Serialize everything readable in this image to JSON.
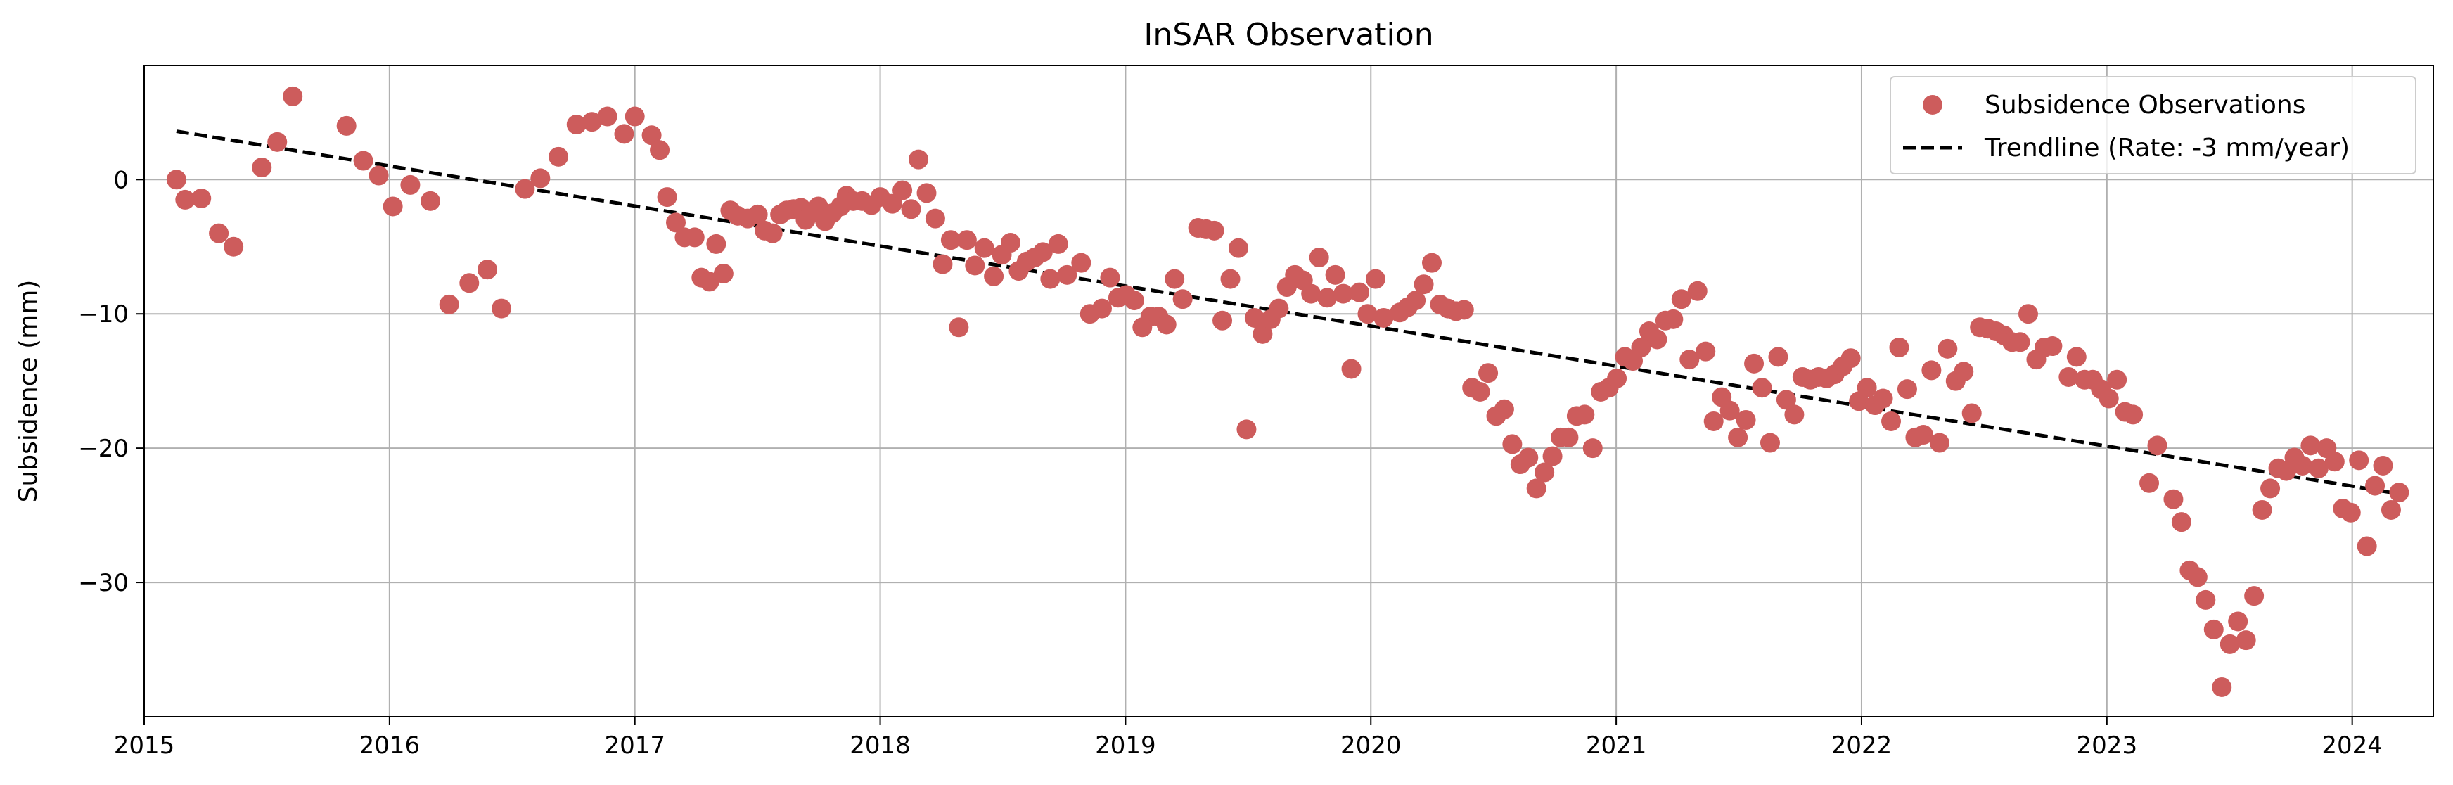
{
  "chart_data": {
    "type": "scatter",
    "title": "InSAR Observation",
    "xlabel": "",
    "ylabel": "Subsidence (mm)",
    "xlim": [
      "2015-01-01",
      "2024-05-01"
    ],
    "ylim": [
      -40,
      8.5
    ],
    "grid": true,
    "legend_position": "top-right",
    "x_tick_labels": [
      "2015",
      "2016",
      "2017",
      "2018",
      "2019",
      "2020",
      "2021",
      "2022",
      "2023",
      "2024"
    ],
    "y_ticks": [
      0,
      -10,
      -20,
      -30
    ],
    "y_tick_labels": [
      "0",
      "−10",
      "−20",
      "−30"
    ],
    "colors": {
      "points": "#cd5c5c",
      "trendline": "#000000",
      "grid": "#b0b0b0"
    },
    "series": [
      {
        "name": "Subsidence Observations",
        "points": [
          [
            "2015-02-18",
            0
          ],
          [
            "2015-03-03",
            -1.5
          ],
          [
            "2015-03-27",
            -1.4
          ],
          [
            "2015-04-22",
            -4
          ],
          [
            "2015-05-14",
            -5
          ],
          [
            "2015-06-25",
            0.9
          ],
          [
            "2015-07-18",
            2.8
          ],
          [
            "2015-08-10",
            6.2
          ],
          [
            "2015-10-29",
            4
          ],
          [
            "2015-11-23",
            1.4
          ],
          [
            "2015-12-16",
            0.3
          ],
          [
            "2016-01-06",
            -2
          ],
          [
            "2016-02-01",
            -0.4
          ],
          [
            "2016-03-02",
            -1.6
          ],
          [
            "2016-03-30",
            -9.3
          ],
          [
            "2016-04-29",
            -7.7
          ],
          [
            "2016-05-26",
            -6.7
          ],
          [
            "2016-06-16",
            -9.6
          ],
          [
            "2016-07-21",
            -0.7
          ],
          [
            "2016-08-13",
            0.1
          ],
          [
            "2016-09-09",
            1.7
          ],
          [
            "2016-10-06",
            4.1
          ],
          [
            "2016-10-29",
            4.3
          ],
          [
            "2016-11-21",
            4.7
          ],
          [
            "2016-12-16",
            3.4
          ],
          [
            "2017-01-01",
            4.7
          ],
          [
            "2017-01-26",
            3.3
          ],
          [
            "2017-02-07",
            2.2
          ],
          [
            "2017-02-18",
            -1.3
          ],
          [
            "2017-03-03",
            -3.2
          ],
          [
            "2017-03-16",
            -4.3
          ],
          [
            "2017-03-31",
            -4.3
          ],
          [
            "2017-04-10",
            -7.3
          ],
          [
            "2017-04-22",
            -7.6
          ],
          [
            "2017-05-02",
            -4.8
          ],
          [
            "2017-05-13",
            -7.0
          ],
          [
            "2017-05-23",
            -2.3
          ],
          [
            "2017-06-03",
            -2.7
          ],
          [
            "2017-06-18",
            -2.9
          ],
          [
            "2017-07-03",
            -2.6
          ],
          [
            "2017-07-13",
            -3.8
          ],
          [
            "2017-07-25",
            -4.0
          ],
          [
            "2017-08-05",
            -2.6
          ],
          [
            "2017-08-15",
            -2.3
          ],
          [
            "2017-08-25",
            -2.2
          ],
          [
            "2017-09-05",
            -2.1
          ],
          [
            "2017-09-12",
            -3.0
          ],
          [
            "2017-09-20",
            -2.5
          ],
          [
            "2017-10-01",
            -2.0
          ],
          [
            "2017-10-11",
            -3.1
          ],
          [
            "2017-10-22",
            -2.5
          ],
          [
            "2017-11-03",
            -2.0
          ],
          [
            "2017-11-12",
            -1.2
          ],
          [
            "2017-11-22",
            -1.6
          ],
          [
            "2017-12-05",
            -1.6
          ],
          [
            "2017-12-19",
            -1.9
          ],
          [
            "2018-01-01",
            -1.3
          ],
          [
            "2018-01-19",
            -1.8
          ],
          [
            "2018-02-03",
            -0.8
          ],
          [
            "2018-02-16",
            -2.2
          ],
          [
            "2018-02-27",
            1.5
          ],
          [
            "2018-03-11",
            -1.0
          ],
          [
            "2018-03-24",
            -2.9
          ],
          [
            "2018-04-04",
            -6.3
          ],
          [
            "2018-04-16",
            -4.5
          ],
          [
            "2018-04-28",
            -11
          ],
          [
            "2018-05-10",
            -4.5
          ],
          [
            "2018-05-22",
            -6.4
          ],
          [
            "2018-06-05",
            -5.1
          ],
          [
            "2018-06-19",
            -7.2
          ],
          [
            "2018-07-01",
            -5.6
          ],
          [
            "2018-07-14",
            -4.7
          ],
          [
            "2018-07-26",
            -6.8
          ],
          [
            "2018-08-07",
            -6.1
          ],
          [
            "2018-08-19",
            -5.8
          ],
          [
            "2018-08-31",
            -5.4
          ],
          [
            "2018-09-11",
            -7.4
          ],
          [
            "2018-09-23",
            -4.8
          ],
          [
            "2018-10-06",
            -7.1
          ],
          [
            "2018-10-27",
            -6.2
          ],
          [
            "2018-11-09",
            -10
          ],
          [
            "2018-11-27",
            -9.6
          ],
          [
            "2018-12-09",
            -7.3
          ],
          [
            "2018-12-21",
            -8.8
          ],
          [
            "2019-01-02",
            -8.6
          ],
          [
            "2019-01-14",
            -9.0
          ],
          [
            "2019-01-26",
            -11
          ],
          [
            "2019-02-07",
            -10.2
          ],
          [
            "2019-02-19",
            -10.2
          ],
          [
            "2019-03-03",
            -10.8
          ],
          [
            "2019-03-15",
            -7.4
          ],
          [
            "2019-03-27",
            -8.9
          ],
          [
            "2019-04-19",
            -3.6
          ],
          [
            "2019-05-01",
            -3.7
          ],
          [
            "2019-05-13",
            -3.8
          ],
          [
            "2019-05-25",
            -10.5
          ],
          [
            "2019-06-06",
            -7.4
          ],
          [
            "2019-06-18",
            -5.1
          ],
          [
            "2019-06-30",
            -18.6
          ],
          [
            "2019-07-12",
            -10.3
          ],
          [
            "2019-07-24",
            -11.5
          ],
          [
            "2019-08-05",
            -10.4
          ],
          [
            "2019-08-17",
            -9.6
          ],
          [
            "2019-08-29",
            -8
          ],
          [
            "2019-09-10",
            -7.1
          ],
          [
            "2019-09-22",
            -7.5
          ],
          [
            "2019-10-04",
            -8.5
          ],
          [
            "2019-10-16",
            -5.8
          ],
          [
            "2019-10-28",
            -8.8
          ],
          [
            "2019-11-09",
            -7.1
          ],
          [
            "2019-11-21",
            -8.5
          ],
          [
            "2019-12-03",
            -14.1
          ],
          [
            "2019-12-15",
            -8.4
          ],
          [
            "2019-12-27",
            -10.0
          ],
          [
            "2020-01-08",
            -7.4
          ],
          [
            "2020-01-20",
            -10.3
          ],
          [
            "2020-02-13",
            -9.9
          ],
          [
            "2020-02-25",
            -9.5
          ],
          [
            "2020-03-08",
            -9.0
          ],
          [
            "2020-03-20",
            -7.8
          ],
          [
            "2020-04-01",
            -6.2
          ],
          [
            "2020-04-13",
            -9.3
          ],
          [
            "2020-04-25",
            -9.6
          ],
          [
            "2020-05-07",
            -9.8
          ],
          [
            "2020-05-19",
            -9.7
          ],
          [
            "2020-05-31",
            -15.5
          ],
          [
            "2020-06-12",
            -15.8
          ],
          [
            "2020-06-24",
            -14.4
          ],
          [
            "2020-07-06",
            -17.6
          ],
          [
            "2020-07-18",
            -17.1
          ],
          [
            "2020-07-30",
            -19.7
          ],
          [
            "2020-08-11",
            -21.2
          ],
          [
            "2020-08-23",
            -20.7
          ],
          [
            "2020-09-04",
            -23
          ],
          [
            "2020-09-16",
            -21.8
          ],
          [
            "2020-09-28",
            -20.6
          ],
          [
            "2020-10-10",
            -19.2
          ],
          [
            "2020-10-22",
            -19.2
          ],
          [
            "2020-11-03",
            -17.6
          ],
          [
            "2020-11-15",
            -17.5
          ],
          [
            "2020-11-27",
            -20
          ],
          [
            "2020-12-09",
            -15.8
          ],
          [
            "2020-12-21",
            -15.5
          ],
          [
            "2021-01-02",
            -14.8
          ],
          [
            "2021-01-14",
            -13.2
          ],
          [
            "2021-01-26",
            -13.5
          ],
          [
            "2021-02-07",
            -12.5
          ],
          [
            "2021-02-19",
            -11.3
          ],
          [
            "2021-03-03",
            -11.9
          ],
          [
            "2021-03-15",
            -10.5
          ],
          [
            "2021-03-27",
            -10.4
          ],
          [
            "2021-04-08",
            -8.9
          ],
          [
            "2021-04-20",
            -13.4
          ],
          [
            "2021-05-02",
            -8.3
          ],
          [
            "2021-05-14",
            -12.8
          ],
          [
            "2021-05-26",
            -18.0
          ],
          [
            "2021-06-07",
            -16.2
          ],
          [
            "2021-06-19",
            -17.2
          ],
          [
            "2021-07-01",
            -19.2
          ],
          [
            "2021-07-13",
            -17.9
          ],
          [
            "2021-07-25",
            -13.7
          ],
          [
            "2021-08-06",
            -15.5
          ],
          [
            "2021-08-18",
            -19.6
          ],
          [
            "2021-08-30",
            -13.2
          ],
          [
            "2021-09-11",
            -16.4
          ],
          [
            "2021-09-23",
            -17.5
          ],
          [
            "2021-10-05",
            -14.7
          ],
          [
            "2021-10-17",
            -14.9
          ],
          [
            "2021-10-29",
            -14.7
          ],
          [
            "2021-11-10",
            -14.8
          ],
          [
            "2021-11-22",
            -14.5
          ],
          [
            "2021-12-04",
            -13.9
          ],
          [
            "2021-12-16",
            -13.3
          ],
          [
            "2021-12-28",
            -16.5
          ],
          [
            "2022-01-09",
            -15.5
          ],
          [
            "2022-01-21",
            -16.8
          ],
          [
            "2022-02-02",
            -16.3
          ],
          [
            "2022-02-14",
            -18
          ],
          [
            "2022-02-26",
            -12.5
          ],
          [
            "2022-03-10",
            -15.6
          ],
          [
            "2022-03-22",
            -19.2
          ],
          [
            "2022-04-03",
            -19
          ],
          [
            "2022-04-15",
            -14.2
          ],
          [
            "2022-04-27",
            -19.6
          ],
          [
            "2022-05-09",
            -12.6
          ],
          [
            "2022-05-21",
            -15
          ],
          [
            "2022-06-02",
            -14.3
          ],
          [
            "2022-06-14",
            -17.4
          ],
          [
            "2022-06-26",
            -11
          ],
          [
            "2022-07-08",
            -11.1
          ],
          [
            "2022-07-20",
            -11.3
          ],
          [
            "2022-08-01",
            -11.6
          ],
          [
            "2022-08-13",
            -12.1
          ],
          [
            "2022-08-25",
            -12.1
          ],
          [
            "2022-09-06",
            -10
          ],
          [
            "2022-09-18",
            -13.4
          ],
          [
            "2022-09-30",
            -12.5
          ],
          [
            "2022-10-12",
            -12.4
          ],
          [
            "2022-11-05",
            -14.7
          ],
          [
            "2022-11-17",
            -13.2
          ],
          [
            "2022-11-29",
            -14.9
          ],
          [
            "2022-12-11",
            -14.9
          ],
          [
            "2022-12-23",
            -15.6
          ],
          [
            "2023-01-04",
            -16.3
          ],
          [
            "2023-01-16",
            -14.9
          ],
          [
            "2023-01-28",
            -17.3
          ],
          [
            "2023-02-09",
            -17.5
          ],
          [
            "2023-03-05",
            -22.6
          ],
          [
            "2023-03-17",
            -19.8
          ],
          [
            "2023-04-10",
            -23.8
          ],
          [
            "2023-04-22",
            -25.5
          ],
          [
            "2023-05-04",
            -29.1
          ],
          [
            "2023-05-16",
            -29.6
          ],
          [
            "2023-05-28",
            -31.3
          ],
          [
            "2023-06-09",
            -33.5
          ],
          [
            "2023-06-21",
            -37.8
          ],
          [
            "2023-07-03",
            -34.6
          ],
          [
            "2023-07-15",
            -32.9
          ],
          [
            "2023-07-27",
            -34.3
          ],
          [
            "2023-08-08",
            -31.0
          ],
          [
            "2023-08-20",
            -24.6
          ],
          [
            "2023-09-01",
            -23.0
          ],
          [
            "2023-09-13",
            -21.5
          ],
          [
            "2023-09-25",
            -21.7
          ],
          [
            "2023-10-07",
            -20.7
          ],
          [
            "2023-10-19",
            -21.3
          ],
          [
            "2023-10-31",
            -19.8
          ],
          [
            "2023-11-12",
            -21.5
          ],
          [
            "2023-11-24",
            -20.0
          ],
          [
            "2023-12-06",
            -21.0
          ],
          [
            "2023-12-18",
            -24.5
          ],
          [
            "2023-12-30",
            -24.8
          ],
          [
            "2024-01-11",
            -20.9
          ],
          [
            "2024-01-23",
            -27.3
          ],
          [
            "2024-02-04",
            -22.8
          ],
          [
            "2024-02-16",
            -21.3
          ],
          [
            "2024-02-28",
            -24.6
          ],
          [
            "2024-03-11",
            -23.3
          ]
        ]
      },
      {
        "name": "Trendline (Rate: -3 mm/year)",
        "style": "dashed",
        "points": [
          [
            "2015-02-18",
            3.6
          ],
          [
            "2024-03-11",
            -23.4
          ]
        ]
      }
    ]
  }
}
